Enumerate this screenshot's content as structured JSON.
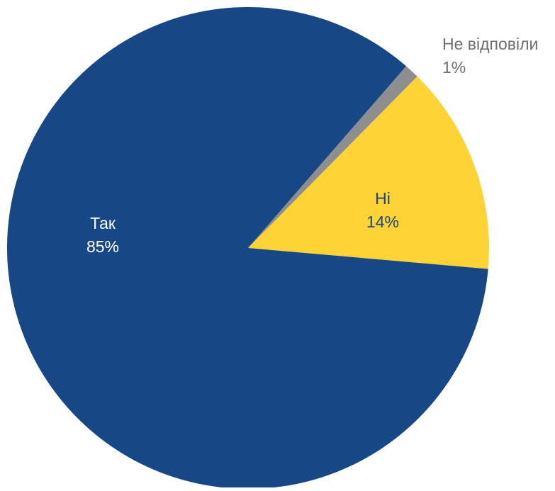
{
  "chart_data": {
    "type": "pie",
    "title": "",
    "start_angle_deg": -49,
    "direction": "clockwise",
    "legend": "none",
    "slices": [
      {
        "label": "Не відповіли",
        "value": 1,
        "value_label": "1%",
        "color": "#8e8e8e",
        "label_color": "#6d6e71",
        "label_placement": "outside"
      },
      {
        "label": "Ні",
        "value": 14,
        "value_label": "14%",
        "color": "#fdd335",
        "label_color": "#1a4686",
        "label_placement": "inside"
      },
      {
        "label": "Так",
        "value": 85,
        "value_label": "85%",
        "color": "#184785",
        "label_color": "#ffffff",
        "label_placement": "inside"
      }
    ]
  }
}
